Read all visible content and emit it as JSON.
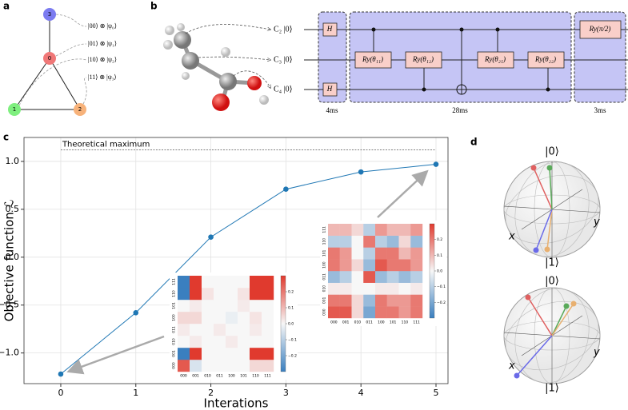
{
  "panels": [
    "a",
    "b",
    "c",
    "d"
  ],
  "graph": {
    "nodes": [
      "0",
      "1",
      "2",
      "3"
    ],
    "kets": [
      "|00⟩ ⊗ |ψ₀⟩",
      "|01⟩ ⊗ |ψ₁⟩",
      "|10⟩ ⊗ |ψ₂⟩",
      "|11⟩ ⊗ |ψ₃⟩"
    ]
  },
  "circuit": {
    "qubits": [
      "C₂ |0⟩",
      "C₃ |0⟩",
      "C₄ |0⟩"
    ],
    "gates": {
      "h": "H",
      "ry11": "Ry(θ₁₁)",
      "ry12": "Ry(θ₁₂)",
      "ry21": "Ry(θ₂₁)",
      "ry22": "Ry(θ₂₂)",
      "ryhalf": "Ry(π/2)"
    },
    "times": [
      "4ms",
      "28ms",
      "3ms"
    ]
  },
  "chart_data": [
    {
      "type": "line",
      "xlabel": "Interations",
      "ylabel": "Objective function ℒ",
      "x": [
        0,
        1,
        2,
        3,
        4,
        5
      ],
      "values": [
        -1.22,
        -0.58,
        0.21,
        0.71,
        0.89,
        0.97
      ],
      "color": "#1f77b4",
      "xlim": [
        -0.49,
        5.16
      ],
      "ylim": [
        -1.32,
        1.25
      ],
      "xticks": [
        0,
        1,
        2,
        3,
        4,
        5
      ],
      "yticks": [
        {
          "value": -1.0,
          "label": "−1.0"
        },
        {
          "value": -0.5,
          "label": "−0.5"
        },
        {
          "value": 0,
          "label": "0.0"
        },
        0.5,
        {
          "value": 1.0,
          "label": "1.0"
        }
      ],
      "grid": true,
      "annotation": {
        "text": "Theoretical maximum",
        "value": 1.12
      }
    },
    {
      "type": "heatmap",
      "categories": [
        "000",
        "001",
        "010",
        "011",
        "100",
        "101",
        "110",
        "111"
      ],
      "values": [
        [
          0.25,
          -0.05,
          0,
          0,
          0,
          0,
          0.05,
          0.05
        ],
        [
          -0.3,
          0.3,
          0,
          0,
          0,
          0,
          0.3,
          0.3
        ],
        [
          0,
          0.02,
          0,
          0,
          0.02,
          0,
          0,
          0
        ],
        [
          0.02,
          0,
          0,
          0.02,
          0,
          0,
          0.02,
          0
        ],
        [
          0.05,
          0.05,
          0,
          0,
          -0.02,
          0,
          0.03,
          0
        ],
        [
          0,
          0.02,
          0,
          0,
          0,
          0.02,
          0,
          0
        ],
        [
          -0.3,
          0.3,
          0.03,
          0,
          0,
          0.03,
          0.3,
          0.3
        ],
        [
          -0.3,
          0.3,
          0,
          0,
          0,
          0,
          0.3,
          0.3
        ]
      ],
      "clim": [
        -0.3,
        0.3
      ],
      "cticks": [
        {
          "value": -0.2,
          "label": "−0.2"
        },
        {
          "value": -0.1,
          "label": "−0.1"
        },
        {
          "value": 0,
          "label": "0.0"
        },
        0.1,
        0.2
      ]
    },
    {
      "type": "heatmap",
      "categories": [
        "000",
        "001",
        "010",
        "011",
        "100",
        "101",
        "110",
        "111"
      ],
      "values": [
        [
          0.25,
          0.25,
          0.05,
          -0.2,
          0.2,
          0.2,
          0.15,
          0.2
        ],
        [
          0.2,
          0.2,
          0.05,
          -0.15,
          0.2,
          0.15,
          0.15,
          0.2
        ],
        [
          0.02,
          0.02,
          0,
          0,
          0.02,
          0.02,
          0,
          0.02
        ],
        [
          -0.15,
          -0.1,
          0,
          0.25,
          -0.15,
          -0.1,
          -0.15,
          -0.1
        ],
        [
          0.2,
          0.15,
          0.05,
          -0.15,
          0.25,
          0.2,
          0.2,
          0.15
        ],
        [
          0.2,
          0.15,
          0,
          -0.1,
          0.2,
          0.2,
          0.1,
          0.15
        ],
        [
          -0.1,
          -0.1,
          0,
          0.2,
          -0.1,
          -0.15,
          0.05,
          -0.15
        ],
        [
          0.1,
          0.1,
          0.05,
          -0.1,
          0.15,
          0.1,
          0.1,
          0.15
        ]
      ],
      "clim": [
        -0.3,
        0.3
      ],
      "cticks": [
        {
          "value": -0.2,
          "label": "−0.2"
        },
        {
          "value": -0.1,
          "label": "−0.1"
        },
        {
          "value": 0,
          "label": "0.0"
        },
        0.1,
        0.2
      ]
    }
  ],
  "bloch": [
    {
      "top": "|0⟩",
      "bottom": "|1⟩",
      "x": "x",
      "y": "y"
    },
    {
      "top": "|0⟩",
      "bottom": "|1⟩",
      "x": "x",
      "y": "y"
    }
  ]
}
